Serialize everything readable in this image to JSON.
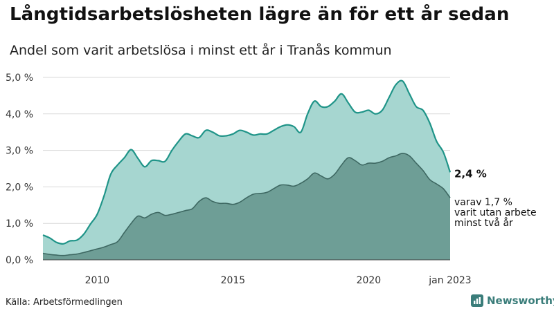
{
  "title": "Långtidsarbetslösheten lägre än för ett år sedan",
  "subtitle": "Andel som varit arbetslösa i minst ett år i Tranås kommun",
  "source": "Källa: Arbetsförmedlingen",
  "brand": "Newsworthy",
  "colors": {
    "total_fill": "#a6d6d0",
    "total_line": "#1f9488",
    "sub_fill": "#6e9e96",
    "sub_line": "#3e6862",
    "brand": "#3a7d7a"
  },
  "chart_data": {
    "type": "area",
    "title": "Långtidsarbetslösheten lägre än för ett år sedan",
    "subtitle": "Andel som varit arbetslösa i minst ett år i Tranås kommun",
    "ylim": [
      0,
      5.0
    ],
    "x_range": [
      "2008-01",
      "2023-01"
    ],
    "yticks": [
      "0,0 %",
      "1,0 %",
      "2,0 %",
      "3,0 %",
      "4,0 %",
      "5,0 %"
    ],
    "xticks": [
      {
        "x": "2010-01",
        "label": "2010"
      },
      {
        "x": "2015-01",
        "label": "2015"
      },
      {
        "x": "2020-01",
        "label": "2020"
      },
      {
        "x": "2023-01",
        "label": "jan 2023"
      }
    ],
    "grid": true,
    "series": [
      {
        "points": [
          [
            "2008-01",
            0.68
          ],
          [
            "2008-04",
            0.6
          ],
          [
            "2008-07",
            0.48
          ],
          [
            "2008-10",
            0.44
          ],
          [
            "2009-01",
            0.52
          ],
          [
            "2009-04",
            0.54
          ],
          [
            "2009-07",
            0.7
          ],
          [
            "2009-10",
            0.98
          ],
          [
            "2010-01",
            1.25
          ],
          [
            "2010-04",
            1.75
          ],
          [
            "2010-07",
            2.35
          ],
          [
            "2010-10",
            2.6
          ],
          [
            "2011-01",
            2.8
          ],
          [
            "2011-04",
            3.02
          ],
          [
            "2011-07",
            2.78
          ],
          [
            "2011-10",
            2.55
          ],
          [
            "2012-01",
            2.72
          ],
          [
            "2012-04",
            2.72
          ],
          [
            "2012-07",
            2.7
          ],
          [
            "2012-10",
            3.0
          ],
          [
            "2013-01",
            3.25
          ],
          [
            "2013-04",
            3.45
          ],
          [
            "2013-07",
            3.4
          ],
          [
            "2013-10",
            3.35
          ],
          [
            "2014-01",
            3.55
          ],
          [
            "2014-04",
            3.5
          ],
          [
            "2014-07",
            3.4
          ],
          [
            "2014-10",
            3.4
          ],
          [
            "2015-01",
            3.45
          ],
          [
            "2015-04",
            3.55
          ],
          [
            "2015-07",
            3.5
          ],
          [
            "2015-10",
            3.42
          ],
          [
            "2016-01",
            3.45
          ],
          [
            "2016-04",
            3.45
          ],
          [
            "2016-07",
            3.55
          ],
          [
            "2016-10",
            3.65
          ],
          [
            "2017-01",
            3.7
          ],
          [
            "2017-04",
            3.65
          ],
          [
            "2017-07",
            3.5
          ],
          [
            "2017-10",
            4.0
          ],
          [
            "2018-01",
            4.35
          ],
          [
            "2018-04",
            4.2
          ],
          [
            "2018-07",
            4.2
          ],
          [
            "2018-10",
            4.35
          ],
          [
            "2019-01",
            4.55
          ],
          [
            "2019-04",
            4.3
          ],
          [
            "2019-07",
            4.05
          ],
          [
            "2019-10",
            4.05
          ],
          [
            "2020-01",
            4.1
          ],
          [
            "2020-04",
            4.0
          ],
          [
            "2020-07",
            4.1
          ],
          [
            "2020-10",
            4.45
          ],
          [
            "2021-01",
            4.8
          ],
          [
            "2021-04",
            4.9
          ],
          [
            "2021-07",
            4.55
          ],
          [
            "2021-10",
            4.2
          ],
          [
            "2022-01",
            4.1
          ],
          [
            "2022-04",
            3.75
          ],
          [
            "2022-07",
            3.25
          ],
          [
            "2022-10",
            2.95
          ],
          [
            "2023-01",
            2.4
          ]
        ],
        "end_label": "2,4 %"
      },
      {
        "points": [
          [
            "2008-01",
            0.18
          ],
          [
            "2008-04",
            0.15
          ],
          [
            "2008-07",
            0.13
          ],
          [
            "2008-10",
            0.12
          ],
          [
            "2009-01",
            0.14
          ],
          [
            "2009-04",
            0.16
          ],
          [
            "2009-07",
            0.2
          ],
          [
            "2009-10",
            0.25
          ],
          [
            "2010-01",
            0.3
          ],
          [
            "2010-04",
            0.35
          ],
          [
            "2010-07",
            0.42
          ],
          [
            "2010-10",
            0.5
          ],
          [
            "2011-01",
            0.75
          ],
          [
            "2011-04",
            1.0
          ],
          [
            "2011-07",
            1.2
          ],
          [
            "2011-10",
            1.15
          ],
          [
            "2012-01",
            1.25
          ],
          [
            "2012-04",
            1.3
          ],
          [
            "2012-07",
            1.22
          ],
          [
            "2012-10",
            1.25
          ],
          [
            "2013-01",
            1.3
          ],
          [
            "2013-04",
            1.35
          ],
          [
            "2013-07",
            1.4
          ],
          [
            "2013-10",
            1.6
          ],
          [
            "2014-01",
            1.7
          ],
          [
            "2014-04",
            1.6
          ],
          [
            "2014-07",
            1.55
          ],
          [
            "2014-10",
            1.55
          ],
          [
            "2015-01",
            1.52
          ],
          [
            "2015-04",
            1.58
          ],
          [
            "2015-07",
            1.7
          ],
          [
            "2015-10",
            1.8
          ],
          [
            "2016-01",
            1.82
          ],
          [
            "2016-04",
            1.85
          ],
          [
            "2016-07",
            1.95
          ],
          [
            "2016-10",
            2.05
          ],
          [
            "2017-01",
            2.05
          ],
          [
            "2017-04",
            2.02
          ],
          [
            "2017-07",
            2.1
          ],
          [
            "2017-10",
            2.22
          ],
          [
            "2018-01",
            2.38
          ],
          [
            "2018-04",
            2.3
          ],
          [
            "2018-07",
            2.22
          ],
          [
            "2018-10",
            2.35
          ],
          [
            "2019-01",
            2.6
          ],
          [
            "2019-04",
            2.8
          ],
          [
            "2019-07",
            2.72
          ],
          [
            "2019-10",
            2.6
          ],
          [
            "2020-01",
            2.65
          ],
          [
            "2020-04",
            2.65
          ],
          [
            "2020-07",
            2.7
          ],
          [
            "2020-10",
            2.8
          ],
          [
            "2021-01",
            2.85
          ],
          [
            "2021-04",
            2.92
          ],
          [
            "2021-07",
            2.85
          ],
          [
            "2021-10",
            2.65
          ],
          [
            "2022-01",
            2.45
          ],
          [
            "2022-04",
            2.2
          ],
          [
            "2022-07",
            2.08
          ],
          [
            "2022-10",
            1.95
          ],
          [
            "2023-01",
            1.7
          ]
        ],
        "end_label": "varav 1,7 %\nvarit utan arbete\nminst två år"
      }
    ]
  }
}
